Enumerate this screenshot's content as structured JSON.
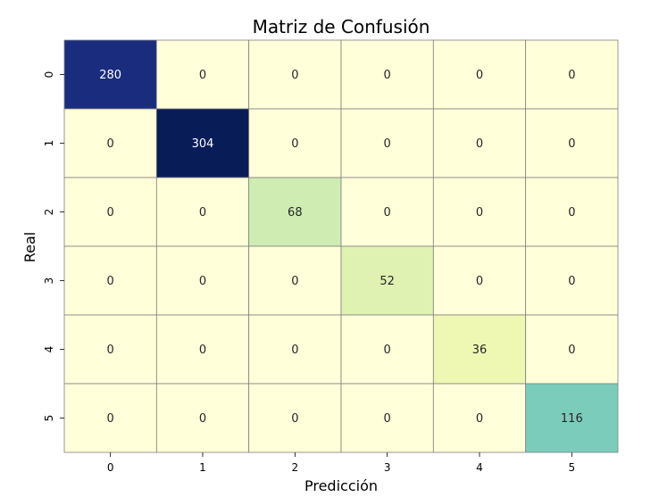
{
  "chart_data": {
    "type": "heatmap",
    "title": "Matriz de Confusión",
    "xlabel": "Predicción",
    "ylabel": "Real",
    "x_categories": [
      "0",
      "1",
      "2",
      "3",
      "4",
      "5"
    ],
    "y_categories": [
      "0",
      "1",
      "2",
      "3",
      "4",
      "5"
    ],
    "values": [
      [
        280,
        0,
        0,
        0,
        0,
        0
      ],
      [
        0,
        304,
        0,
        0,
        0,
        0
      ],
      [
        0,
        0,
        68,
        0,
        0,
        0
      ],
      [
        0,
        0,
        0,
        52,
        0,
        0
      ],
      [
        0,
        0,
        0,
        0,
        36,
        0
      ],
      [
        0,
        0,
        0,
        0,
        0,
        116
      ]
    ],
    "colormap": "YlGnBu",
    "value_range": [
      0,
      304
    ],
    "annotations": true,
    "colorbar": false,
    "cell_border_color": "#808080"
  }
}
